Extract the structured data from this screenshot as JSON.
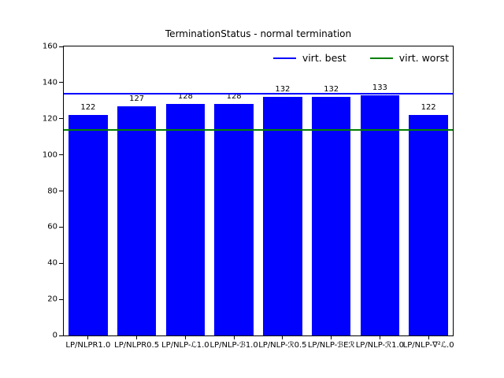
{
  "title": "TerminationStatus - normal termination",
  "legend": {
    "best_label": "virt. best",
    "worst_label": "virt. worst",
    "best_color": "#0000ff",
    "worst_color": "#008000"
  },
  "chart_data": {
    "type": "bar",
    "title": "TerminationStatus - normal termination",
    "categories": [
      "LP/NLPR1.0",
      "LP/NLPR0.5",
      "LP/NLP-ℒ1.0",
      "LP/NLP-ℬ1.0",
      "LP/NLP-ℛ0.5",
      "LP/NLP-ℬEℛ",
      "LP/NLP-ℛ1.0",
      "LP/NLP-∇²ℒ.0"
    ],
    "values": [
      122,
      127,
      128,
      128,
      132,
      132,
      133,
      122
    ],
    "bar_color": "#0000ff",
    "bar_value_labels": [
      "122",
      "127",
      "128",
      "128",
      "132",
      "132",
      "133",
      "122"
    ],
    "xlabel": "",
    "ylabel": "",
    "ylim": [
      0,
      160
    ],
    "yticks": [
      0,
      20,
      40,
      60,
      80,
      100,
      120,
      140,
      160
    ],
    "grid": false,
    "legend_position": "upper right inside",
    "hlines": [
      {
        "label": "virt. best",
        "value": 134,
        "color": "#0000ff"
      },
      {
        "label": "virt. worst",
        "value": 114,
        "color": "#008000"
      }
    ]
  }
}
